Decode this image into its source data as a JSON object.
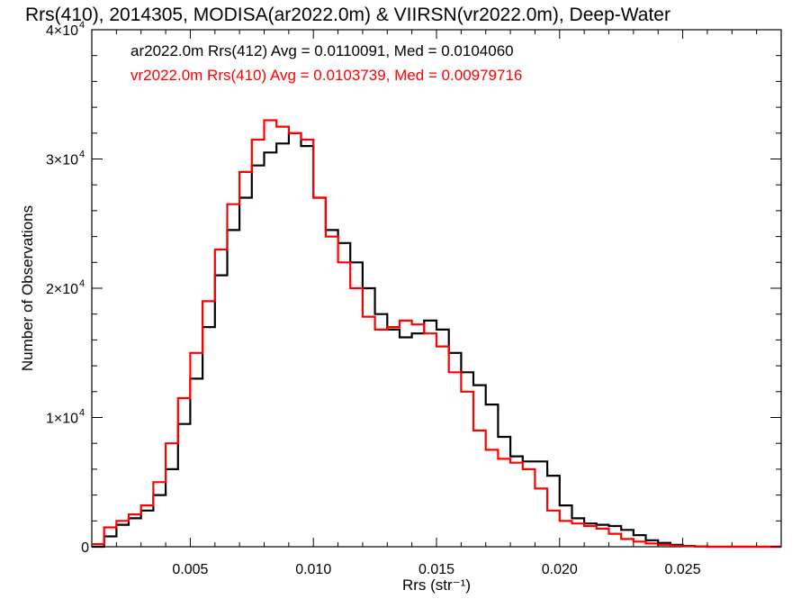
{
  "chart_data": {
    "type": "line",
    "title": "Rrs(410), 2014305, MODISA(ar2022.0m) & VIIRSN(vr2022.0m), Deep-Water",
    "xlabel": "Rrs (str⁻¹)",
    "ylabel": "Number of Observations",
    "xlim": [
      0.001,
      0.029
    ],
    "ylim": [
      0,
      40000
    ],
    "x_ticks": [
      {
        "value": 0.005,
        "label": "0.005"
      },
      {
        "value": 0.01,
        "label": "0.010"
      },
      {
        "value": 0.015,
        "label": "0.015"
      },
      {
        "value": 0.02,
        "label": "0.020"
      },
      {
        "value": 0.025,
        "label": "0.025"
      }
    ],
    "y_ticks": [
      {
        "value": 0,
        "label": "0",
        "exp": ""
      },
      {
        "value": 10000,
        "label": "1×10",
        "exp": "4"
      },
      {
        "value": 20000,
        "label": "2×10",
        "exp": "4"
      },
      {
        "value": 30000,
        "label": "3×10",
        "exp": "4"
      },
      {
        "value": 40000,
        "label": "4×10",
        "exp": "4"
      }
    ],
    "grid": false,
    "legend_position": "top-left",
    "series": [
      {
        "name": "ar2022.0m Rrs(412)",
        "label": "ar2022.0m Rrs(412) Avg = 0.0110091, Med = 0.0104060",
        "color": "#000000",
        "x": [
          0.001,
          0.0015,
          0.002,
          0.0025,
          0.003,
          0.0035,
          0.004,
          0.0045,
          0.005,
          0.0055,
          0.006,
          0.0065,
          0.007,
          0.0075,
          0.008,
          0.0085,
          0.009,
          0.0095,
          0.01,
          0.0105,
          0.011,
          0.0115,
          0.012,
          0.0125,
          0.013,
          0.0135,
          0.014,
          0.0145,
          0.015,
          0.0155,
          0.016,
          0.0165,
          0.017,
          0.0175,
          0.018,
          0.0185,
          0.019,
          0.0195,
          0.02,
          0.0205,
          0.021,
          0.0215,
          0.022,
          0.0225,
          0.023,
          0.0235,
          0.024,
          0.0245,
          0.025,
          0.0255,
          0.026,
          0.027,
          0.028,
          0.029
        ],
        "y": [
          0,
          800,
          1700,
          2200,
          2800,
          4000,
          6000,
          9500,
          13000,
          17000,
          21000,
          24500,
          27000,
          29500,
          30500,
          31200,
          32000,
          31000,
          27000,
          24500,
          23500,
          22000,
          20000,
          18000,
          16800,
          16200,
          16500,
          17500,
          16800,
          15000,
          13500,
          12500,
          11000,
          8500,
          7000,
          6600,
          6600,
          5500,
          3200,
          2200,
          1800,
          1700,
          1600,
          1300,
          900,
          500,
          300,
          150,
          60,
          20,
          0,
          0,
          0,
          0
        ]
      },
      {
        "name": "vr2022.0m Rrs(410)",
        "label": "vr2022.0m Rrs(410) Avg = 0.0103739, Med = 0.00979716",
        "color": "#ff0000",
        "x": [
          0.001,
          0.0015,
          0.002,
          0.0025,
          0.003,
          0.0035,
          0.004,
          0.0045,
          0.005,
          0.0055,
          0.006,
          0.0065,
          0.007,
          0.0075,
          0.008,
          0.0085,
          0.009,
          0.0095,
          0.01,
          0.0105,
          0.011,
          0.0115,
          0.012,
          0.0125,
          0.013,
          0.0135,
          0.014,
          0.0145,
          0.015,
          0.0155,
          0.016,
          0.0165,
          0.017,
          0.0175,
          0.018,
          0.0185,
          0.019,
          0.0195,
          0.02,
          0.0205,
          0.021,
          0.0215,
          0.022,
          0.0225,
          0.023,
          0.0235,
          0.024,
          0.0245,
          0.025,
          0.0255,
          0.026,
          0.027,
          0.028,
          0.029
        ],
        "y": [
          200,
          1500,
          2000,
          2500,
          3200,
          5000,
          8000,
          11500,
          15000,
          19000,
          23000,
          26500,
          29000,
          31500,
          33000,
          32500,
          32000,
          31500,
          27000,
          24000,
          22000,
          20000,
          17800,
          16800,
          17000,
          17500,
          17200,
          16500,
          15500,
          13500,
          12000,
          9000,
          7500,
          6800,
          6500,
          6000,
          4500,
          2800,
          2000,
          1800,
          1600,
          1400,
          1000,
          600,
          400,
          250,
          150,
          80,
          40,
          20,
          0,
          0,
          0,
          0
        ]
      }
    ]
  }
}
